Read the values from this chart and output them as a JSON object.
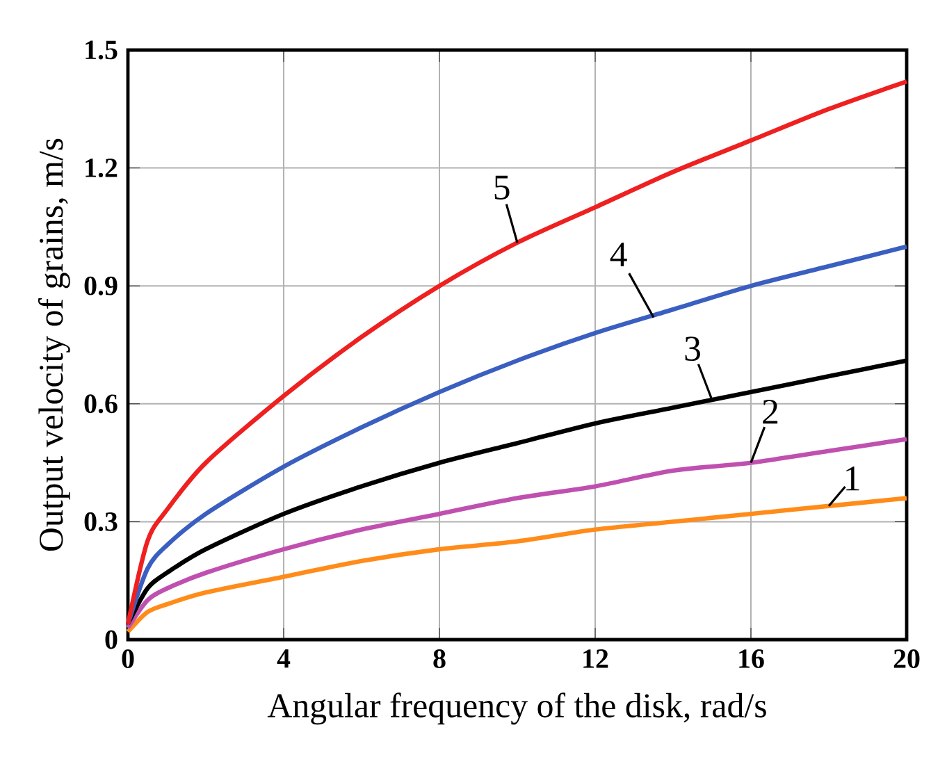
{
  "chart_data": {
    "type": "line",
    "xlabel": "Angular frequency of the disk, rad/s",
    "ylabel": "Output velocity of grains, m/s",
    "xlim": [
      0,
      20
    ],
    "ylim": [
      0,
      1.5
    ],
    "xticks": [
      0,
      4,
      8,
      12,
      16,
      20
    ],
    "yticks": [
      0,
      0.3,
      0.6,
      0.9,
      1.2,
      1.5
    ],
    "grid": true,
    "marker": "none",
    "line_style": "solid",
    "series": [
      {
        "color": "#ff8c1a",
        "x": [
          0,
          0.5,
          1,
          2,
          4,
          6,
          8,
          10,
          12,
          14,
          16,
          18,
          20
        ],
        "values": [
          0.02,
          0.07,
          0.09,
          0.12,
          0.16,
          0.2,
          0.23,
          0.25,
          0.28,
          0.3,
          0.32,
          0.34,
          0.36
        ]
      },
      {
        "color": "#c050b0",
        "x": [
          0,
          0.5,
          1,
          2,
          4,
          6,
          8,
          10,
          12,
          14,
          16,
          18,
          20
        ],
        "values": [
          0.03,
          0.1,
          0.13,
          0.17,
          0.23,
          0.28,
          0.32,
          0.36,
          0.39,
          0.43,
          0.45,
          0.48,
          0.51
        ]
      },
      {
        "color": "#000000",
        "x": [
          0,
          0.5,
          1,
          2,
          4,
          6,
          8,
          10,
          12,
          14,
          16,
          18,
          20
        ],
        "values": [
          0.04,
          0.13,
          0.17,
          0.23,
          0.32,
          0.39,
          0.45,
          0.5,
          0.55,
          0.59,
          0.63,
          0.67,
          0.71
        ]
      },
      {
        "color": "#3a5fc0",
        "x": [
          0,
          0.5,
          1,
          2,
          4,
          6,
          8,
          10,
          12,
          14,
          16,
          18,
          20
        ],
        "values": [
          0.04,
          0.18,
          0.24,
          0.32,
          0.44,
          0.54,
          0.63,
          0.71,
          0.78,
          0.84,
          0.9,
          0.95,
          1.0
        ]
      },
      {
        "color": "#ee2020",
        "x": [
          0,
          0.5,
          1,
          2,
          4,
          6,
          8,
          10,
          12,
          14,
          16,
          18,
          20
        ],
        "values": [
          0.04,
          0.25,
          0.33,
          0.45,
          0.62,
          0.77,
          0.9,
          1.01,
          1.1,
          1.19,
          1.27,
          1.35,
          1.42
        ]
      }
    ],
    "annotations": [
      {
        "text": "1",
        "x": 18,
        "y": 0.34
      },
      {
        "text": "2",
        "x": 16,
        "y": 0.45
      },
      {
        "text": "3",
        "x": 15,
        "y": 0.61
      },
      {
        "text": "4",
        "x": 13.5,
        "y": 0.82
      },
      {
        "text": "5",
        "x": 10,
        "y": 1.01
      }
    ]
  }
}
